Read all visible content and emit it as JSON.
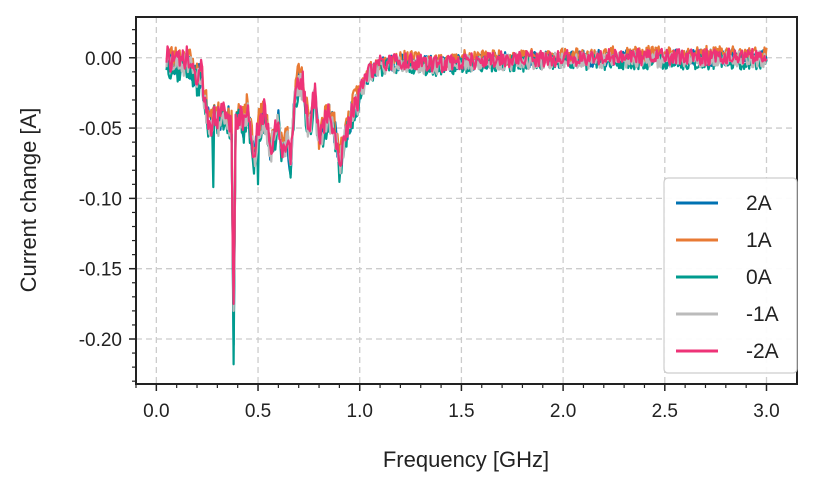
{
  "chart_data": {
    "type": "line",
    "title": "",
    "xlabel": "Frequency [GHz]",
    "ylabel": "Current change [A]",
    "xlim": [
      -0.1,
      3.15
    ],
    "ylim": [
      -0.232,
      0.029
    ],
    "grid": true,
    "legend_position": "right",
    "x_ticks": [
      {
        "value": 0.0,
        "label": "0.0"
      },
      {
        "value": 0.5,
        "label": "0.5"
      },
      {
        "value": 1.0,
        "label": "1.0"
      },
      {
        "value": 1.5,
        "label": "1.5"
      },
      {
        "value": 2.0,
        "label": "2.0"
      },
      {
        "value": 2.5,
        "label": "2.5"
      },
      {
        "value": 3.0,
        "label": "3.0"
      }
    ],
    "y_ticks": [
      {
        "value": 0.0,
        "label": "0.00"
      },
      {
        "value": -0.05,
        "label": "-0.05"
      },
      {
        "value": -0.1,
        "label": "-0.10"
      },
      {
        "value": -0.15,
        "label": "-0.15"
      },
      {
        "value": -0.2,
        "label": "-0.20"
      }
    ],
    "base_curve": {
      "x": [
        0.05,
        0.1,
        0.15,
        0.2,
        0.22,
        0.25,
        0.27,
        0.28,
        0.3,
        0.33,
        0.35,
        0.37,
        0.38,
        0.39,
        0.41,
        0.43,
        0.45,
        0.48,
        0.5,
        0.53,
        0.56,
        0.58,
        0.6,
        0.62,
        0.64,
        0.66,
        0.68,
        0.7,
        0.72,
        0.75,
        0.78,
        0.8,
        0.82,
        0.85,
        0.88,
        0.9,
        0.92,
        0.95,
        1.0,
        1.05,
        1.1,
        1.2,
        1.3,
        1.4,
        1.5,
        1.7,
        2.0,
        2.3,
        2.6,
        3.0
      ],
      "y": [
        0.0,
        -0.005,
        -0.002,
        -0.015,
        -0.012,
        -0.04,
        -0.05,
        -0.035,
        -0.045,
        -0.04,
        -0.042,
        -0.05,
        -0.2,
        -0.045,
        -0.04,
        -0.05,
        -0.035,
        -0.075,
        -0.05,
        -0.04,
        -0.065,
        -0.055,
        -0.045,
        -0.07,
        -0.055,
        -0.075,
        -0.03,
        -0.015,
        -0.02,
        -0.05,
        -0.025,
        -0.06,
        -0.05,
        -0.04,
        -0.055,
        -0.075,
        -0.06,
        -0.045,
        -0.025,
        -0.01,
        -0.005,
        -0.003,
        -0.004,
        -0.005,
        -0.003,
        -0.002,
        -0.001,
        0.0,
        0.0,
        0.0
      ]
    },
    "series": [
      {
        "name": "2A",
        "color": "#0072B2",
        "offset": 0.0,
        "seed": 11,
        "noise": 0.006
      },
      {
        "name": "1A",
        "color": "#E87A34",
        "offset": 0.004,
        "seed": 23,
        "noise": 0.006
      },
      {
        "name": "0A",
        "color": "#009B8E",
        "offset": -0.004,
        "seed": 37,
        "noise": 0.006
      },
      {
        "name": "-1A",
        "color": "#BBBBBB",
        "offset": -0.002,
        "seed": 51,
        "noise": 0.006
      },
      {
        "name": "-2A",
        "color": "#EE3377",
        "offset": 0.001,
        "seed": 73,
        "noise": 0.006
      }
    ],
    "dips": [
      {
        "series": "0A",
        "x": 0.28,
        "y": -0.092
      },
      {
        "series": "0A",
        "x": 0.38,
        "y": -0.218
      },
      {
        "series": "-2A",
        "x": 0.38,
        "y": -0.175
      },
      {
        "series": "-1A",
        "x": 0.38,
        "y": -0.18
      },
      {
        "series": "0A",
        "x": 0.5,
        "y": -0.09
      },
      {
        "series": "0A",
        "x": 0.91,
        "y": -0.082
      }
    ]
  }
}
